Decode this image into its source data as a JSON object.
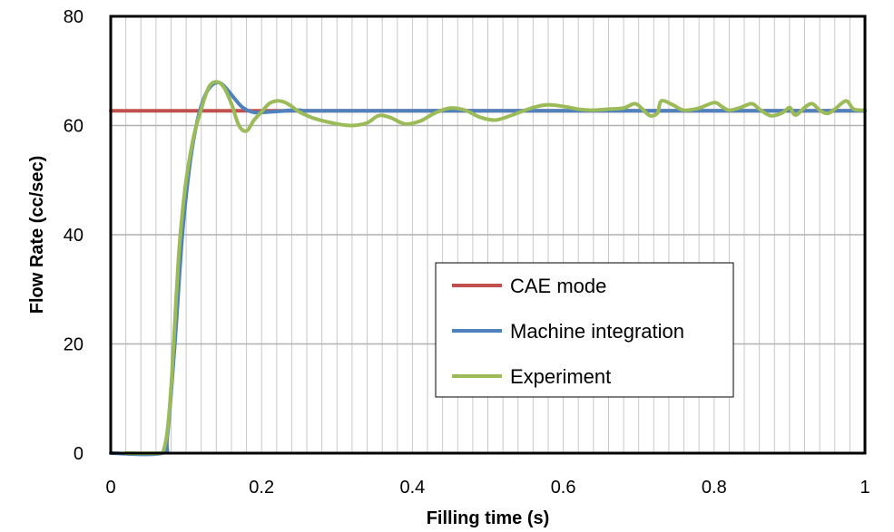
{
  "chart_data": {
    "type": "line",
    "title": "",
    "xlabel": "Filling time (s)",
    "ylabel": "Flow Rate (cc/sec)",
    "xlim": [
      0,
      1
    ],
    "ylim": [
      0,
      80
    ],
    "xticks": [
      0,
      0.2,
      0.4,
      0.6,
      0.8,
      1
    ],
    "xtick_labels": [
      "0",
      "0.2",
      "0.4",
      "0.6",
      "0.8",
      "1"
    ],
    "yticks": [
      0,
      20,
      40,
      60,
      80
    ],
    "ytick_labels": [
      "0",
      "20",
      "40",
      "60",
      "80"
    ],
    "x_minor_gridlines": 50,
    "grid": true,
    "legend_position": "center-right",
    "series": [
      {
        "name": "CAE mode",
        "color": "#c0504d",
        "points": [
          [
            0,
            62.7
          ],
          [
            1.0,
            62.7
          ]
        ]
      },
      {
        "name": "Machine integration",
        "color": "#4f81bd",
        "points": [
          [
            0,
            0
          ],
          [
            0.068,
            0
          ],
          [
            0.075,
            3
          ],
          [
            0.085,
            20
          ],
          [
            0.095,
            40
          ],
          [
            0.105,
            53
          ],
          [
            0.115,
            61
          ],
          [
            0.125,
            65.5
          ],
          [
            0.135,
            67.5
          ],
          [
            0.145,
            67.8
          ],
          [
            0.155,
            66.5
          ],
          [
            0.165,
            64.8
          ],
          [
            0.175,
            63.3
          ],
          [
            0.19,
            62.4
          ],
          [
            0.21,
            62.5
          ],
          [
            0.25,
            62.8
          ],
          [
            0.3,
            62.7
          ],
          [
            1.0,
            62.7
          ]
        ]
      },
      {
        "name": "Experiment",
        "color": "#9bbb59",
        "points": [
          [
            0.02,
            0
          ],
          [
            0.065,
            0
          ],
          [
            0.07,
            0.5
          ],
          [
            0.075,
            4
          ],
          [
            0.08,
            12
          ],
          [
            0.085,
            24
          ],
          [
            0.09,
            36
          ],
          [
            0.095,
            44
          ],
          [
            0.1,
            50
          ],
          [
            0.11,
            58
          ],
          [
            0.12,
            63
          ],
          [
            0.13,
            67
          ],
          [
            0.14,
            68
          ],
          [
            0.15,
            67
          ],
          [
            0.16,
            64
          ],
          [
            0.17,
            60
          ],
          [
            0.18,
            59
          ],
          [
            0.19,
            61
          ],
          [
            0.2,
            62.5
          ],
          [
            0.21,
            64
          ],
          [
            0.22,
            64.5
          ],
          [
            0.23,
            64.3
          ],
          [
            0.24,
            63.5
          ],
          [
            0.25,
            62.5
          ],
          [
            0.27,
            61.3
          ],
          [
            0.3,
            60.3
          ],
          [
            0.32,
            60
          ],
          [
            0.34,
            60.5
          ],
          [
            0.355,
            61.8
          ],
          [
            0.37,
            61.5
          ],
          [
            0.39,
            60.3
          ],
          [
            0.41,
            60.8
          ],
          [
            0.43,
            62.3
          ],
          [
            0.45,
            63.2
          ],
          [
            0.47,
            62.8
          ],
          [
            0.49,
            61.5
          ],
          [
            0.51,
            61
          ],
          [
            0.53,
            61.8
          ],
          [
            0.56,
            63.3
          ],
          [
            0.58,
            63.8
          ],
          [
            0.6,
            63.5
          ],
          [
            0.62,
            63
          ],
          [
            0.64,
            62.8
          ],
          [
            0.66,
            63
          ],
          [
            0.68,
            63.2
          ],
          [
            0.695,
            64
          ],
          [
            0.705,
            63
          ],
          [
            0.715,
            61.8
          ],
          [
            0.725,
            62.3
          ],
          [
            0.73,
            64.5
          ],
          [
            0.745,
            63.8
          ],
          [
            0.76,
            62.8
          ],
          [
            0.78,
            63.2
          ],
          [
            0.8,
            64.2
          ],
          [
            0.81,
            63.5
          ],
          [
            0.82,
            62.8
          ],
          [
            0.835,
            63.3
          ],
          [
            0.85,
            64
          ],
          [
            0.86,
            63
          ],
          [
            0.875,
            61.8
          ],
          [
            0.89,
            62.3
          ],
          [
            0.9,
            63.3
          ],
          [
            0.905,
            62.2
          ],
          [
            0.91,
            62
          ],
          [
            0.92,
            63.3
          ],
          [
            0.93,
            64
          ],
          [
            0.94,
            62.8
          ],
          [
            0.95,
            62.2
          ],
          [
            0.96,
            63
          ],
          [
            0.975,
            64.5
          ],
          [
            0.985,
            63
          ],
          [
            1.0,
            62.8
          ]
        ]
      }
    ]
  }
}
